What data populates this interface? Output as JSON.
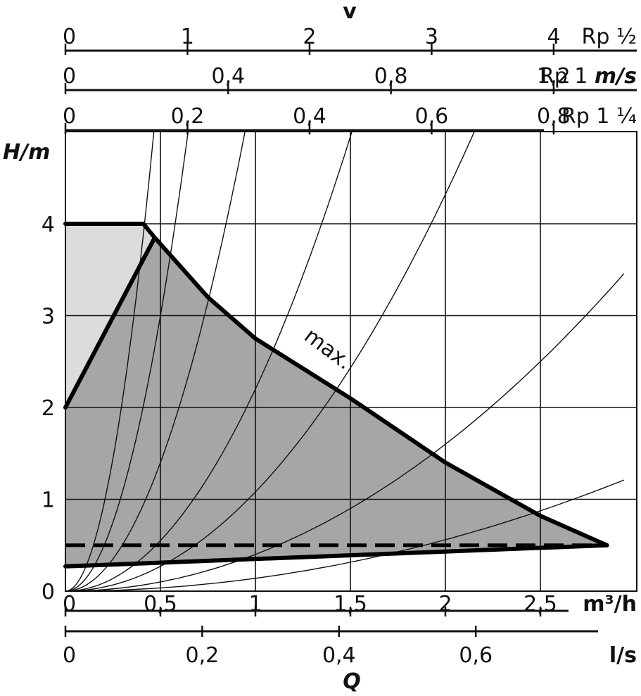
{
  "chart_data": {
    "type": "line",
    "title": "",
    "grid": true,
    "x_axis": {
      "label": "Q",
      "primary_unit": "m³/h",
      "range": [
        0,
        2.94
      ],
      "ticks": [
        {
          "value": 0,
          "label": "0"
        },
        {
          "value": 0.5,
          "label": "0,5"
        },
        {
          "value": 1,
          "label": "1"
        },
        {
          "value": 1.5,
          "label": "1,5"
        },
        {
          "value": 2,
          "label": "2"
        },
        {
          "value": 2.5,
          "label": "2,5"
        }
      ],
      "secondary_unit": "l/s",
      "secondary_ticks": [
        {
          "value": 0,
          "label": "0"
        },
        {
          "value": 0.2,
          "label": "0,2"
        },
        {
          "value": 0.4,
          "label": "0,4"
        },
        {
          "value": 0.6,
          "label": "0,6"
        }
      ]
    },
    "y_axis": {
      "label": "H/m",
      "range": [
        0,
        5
      ],
      "ticks": [
        {
          "value": 0,
          "label": "0"
        },
        {
          "value": 1,
          "label": "1"
        },
        {
          "value": 2,
          "label": "2"
        },
        {
          "value": 3,
          "label": "3"
        },
        {
          "value": 4,
          "label": "4"
        }
      ]
    },
    "velocity_axes": {
      "label": "v",
      "unit": "m/s",
      "scales": [
        {
          "pipe": "Rp ½",
          "max_velocity": 4.0,
          "ticks": [
            {
              "value": 0,
              "label": "0"
            },
            {
              "value": 1,
              "label": "1"
            },
            {
              "value": 2,
              "label": "2"
            },
            {
              "value": 3,
              "label": "3"
            },
            {
              "value": 4,
              "label": "4"
            }
          ]
        },
        {
          "pipe": "Rp 1",
          "max_velocity": 1.2,
          "ticks": [
            {
              "value": 0,
              "label": "0"
            },
            {
              "value": 0.4,
              "label": "0,4"
            },
            {
              "value": 0.8,
              "label": "0,8"
            },
            {
              "value": 1.2,
              "label": "1,2"
            }
          ]
        },
        {
          "pipe": "Rp 1 ¼",
          "max_velocity": 0.8,
          "ticks": [
            {
              "value": 0,
              "label": "0"
            },
            {
              "value": 0.2,
              "label": "0,2"
            },
            {
              "value": 0.4,
              "label": "0,4"
            },
            {
              "value": 0.6,
              "label": "0,6"
            },
            {
              "value": 0.8,
              "label": "0,8"
            }
          ]
        }
      ]
    },
    "regions": [
      {
        "fill": "#dcdcdc",
        "points": [
          [
            0,
            4
          ],
          [
            0.41,
            4
          ],
          [
            0.47,
            3.85
          ],
          [
            0,
            2
          ]
        ]
      },
      {
        "fill": "#a6a6a6",
        "points": [
          [
            0,
            2
          ],
          [
            0.47,
            3.85
          ],
          [
            0.75,
            3.2
          ],
          [
            1.0,
            2.75
          ],
          [
            1.5,
            2.1
          ],
          [
            2.0,
            1.4
          ],
          [
            2.5,
            0.82
          ],
          [
            2.85,
            0.5
          ],
          [
            0,
            0.27
          ]
        ]
      }
    ],
    "series": [
      {
        "name": "max.",
        "style": "thick",
        "points": [
          [
            0.41,
            4
          ],
          [
            0.47,
            3.85
          ],
          [
            0.75,
            3.2
          ],
          [
            1.0,
            2.75
          ],
          [
            1.5,
            2.1
          ],
          [
            2.0,
            1.4
          ],
          [
            2.5,
            0.82
          ],
          [
            2.85,
            0.5
          ]
        ]
      },
      {
        "style": "thick",
        "points": [
          [
            0,
            4
          ],
          [
            0.41,
            4
          ]
        ]
      },
      {
        "style": "thick",
        "points": [
          [
            0,
            2
          ],
          [
            0.47,
            3.85
          ]
        ]
      },
      {
        "style": "thick",
        "points": [
          [
            0,
            0.27
          ],
          [
            2.85,
            0.5
          ]
        ]
      },
      {
        "style": "dashed",
        "points": [
          [
            0,
            0.5
          ],
          [
            2.85,
            0.5
          ]
        ]
      }
    ],
    "system_curves": [
      {
        "k": 23.1,
        "x_max": 0.75
      },
      {
        "k": 12.0,
        "x_max": 1.0
      },
      {
        "k": 5.6,
        "x_max": 1.5
      },
      {
        "k": 2.2,
        "x_max": 2.35
      },
      {
        "k": 1.08,
        "x_max": 2.94
      },
      {
        "k": 0.4,
        "x_max": 2.94
      },
      {
        "k": 0.14,
        "x_max": 2.94
      }
    ],
    "annotations": [
      {
        "text": "max.",
        "x": 1.25,
        "y": 2.75,
        "rotate": 37
      }
    ]
  }
}
